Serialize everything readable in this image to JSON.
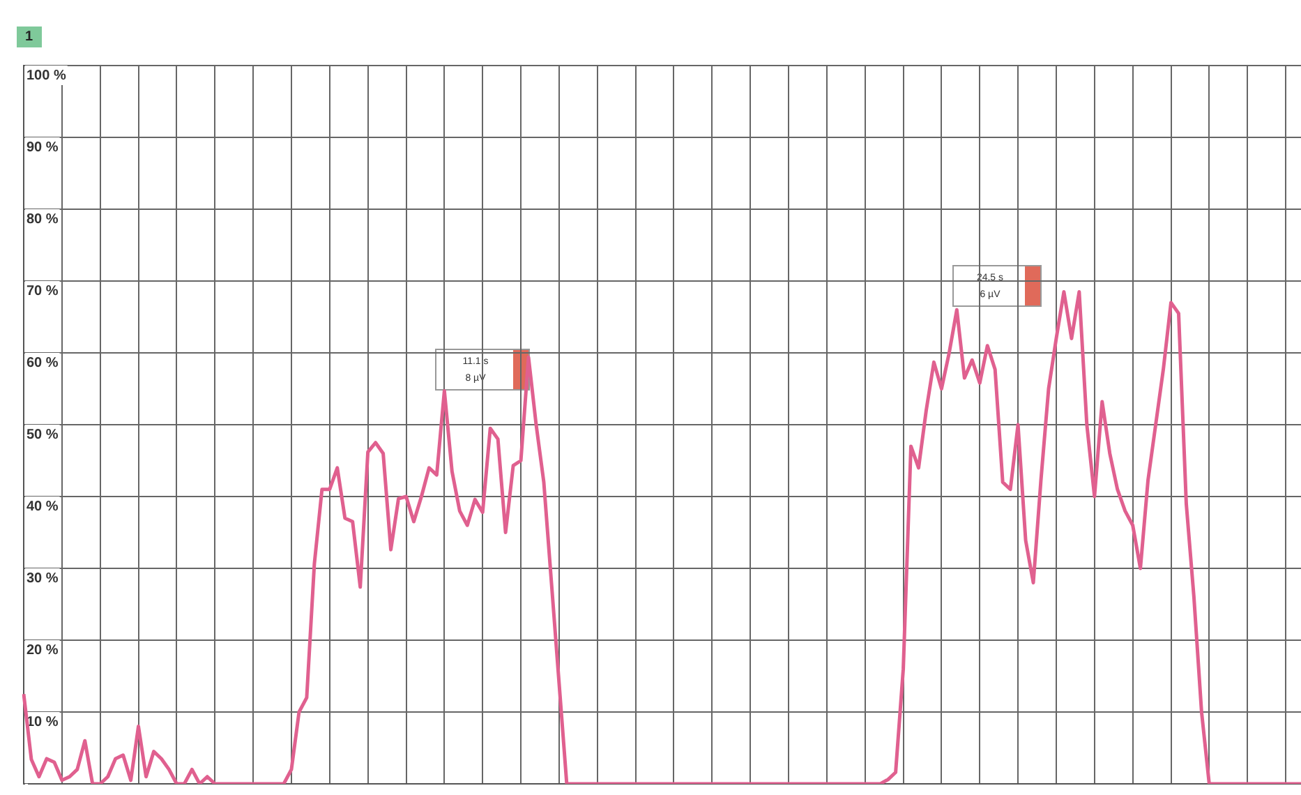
{
  "chart_data": {
    "type": "line",
    "categories": [
      null,
      null,
      null,
      null,
      null,
      null,
      null,
      null,
      null,
      null,
      null,
      null,
      null,
      null,
      null,
      null,
      null,
      null,
      null,
      null,
      null,
      null,
      null,
      null,
      null,
      null,
      null,
      null,
      null,
      null,
      null,
      null,
      null,
      null,
      null,
      null,
      null,
      null,
      null,
      null,
      null,
      null,
      null,
      null,
      null,
      null,
      null,
      null,
      null,
      null,
      null,
      null,
      null,
      null,
      null,
      null,
      null,
      null,
      null,
      null,
      null,
      null,
      null,
      null,
      null,
      null,
      null,
      null,
      null,
      null,
      null,
      null,
      null,
      null,
      null,
      null,
      null,
      null,
      null,
      null,
      null,
      null,
      null,
      null,
      null,
      null,
      null,
      null,
      null,
      null,
      null,
      null,
      null,
      null,
      null,
      null,
      null,
      null,
      null,
      null,
      null,
      null,
      null,
      null,
      null,
      null,
      null,
      null,
      null,
      null,
      null,
      null,
      null,
      null,
      null,
      null,
      null,
      null,
      null,
      null,
      null,
      null,
      null,
      null,
      null,
      null,
      null,
      null,
      null,
      null,
      null,
      null,
      null,
      null,
      null,
      null,
      null,
      null,
      null,
      null,
      null,
      null,
      null,
      null,
      null,
      null,
      null,
      null,
      null,
      null,
      null,
      null,
      null,
      null,
      null,
      null,
      null,
      null,
      null,
      null,
      null,
      null,
      null,
      null,
      null,
      null,
      null,
      null
    ],
    "series": [
      {
        "color": "#e0608f",
        "values": [
          12.5,
          3.4,
          1,
          3.5,
          3,
          0.5,
          1,
          2,
          6,
          0,
          0,
          1,
          3.5,
          4,
          0.5,
          8,
          1,
          4.5,
          3.5,
          2,
          0,
          0,
          2,
          0,
          1,
          0,
          0,
          0,
          0,
          0,
          0,
          0,
          0,
          0,
          0,
          2,
          10,
          12,
          30.6,
          41,
          41,
          44,
          37,
          36.5,
          27.4,
          46.2,
          47.5,
          46,
          32.6,
          39.7,
          40,
          36.5,
          40,
          44,
          43,
          54.7,
          43.5,
          38,
          36,
          39.6,
          37.8,
          49.5,
          48,
          35,
          44.3,
          45,
          59.4,
          50,
          42,
          28,
          14,
          0,
          0,
          0,
          0,
          0,
          0,
          0,
          0,
          0,
          0,
          0,
          0,
          0,
          0,
          0,
          0,
          0,
          0,
          0,
          0,
          0,
          0,
          0,
          0,
          0,
          0,
          0,
          0,
          0,
          0,
          0,
          0,
          0,
          0,
          0,
          0,
          0,
          0,
          0,
          0,
          0,
          0,
          0.6,
          1.6,
          16,
          47,
          44,
          52,
          58.7,
          55,
          60,
          66,
          56.5,
          59,
          55.8,
          61,
          57.7,
          42,
          41,
          50,
          33.9,
          28,
          42.3,
          55,
          62,
          68.5,
          62,
          68.5,
          50,
          40,
          53.2,
          46,
          41,
          38,
          36,
          30,
          42.3,
          50,
          57.7,
          67,
          65.5,
          39,
          26,
          10,
          0,
          0,
          0,
          0,
          0,
          0,
          0,
          0,
          0,
          0,
          0,
          0,
          0
        ]
      }
    ],
    "ylim": [
      0,
      100
    ],
    "yticks": [
      {
        "value": 0,
        "label": null
      },
      {
        "value": 10,
        "label": "10 %"
      },
      {
        "value": 20,
        "label": "20 %"
      },
      {
        "value": 30,
        "label": "30 %"
      },
      {
        "value": 40,
        "label": "40 %"
      },
      {
        "value": 50,
        "label": "50 %"
      },
      {
        "value": 60,
        "label": "60 %"
      },
      {
        "value": 70,
        "label": "70 %"
      },
      {
        "value": 80,
        "label": "80 %"
      },
      {
        "value": 90,
        "label": "90 %"
      },
      {
        "value": 100,
        "label": "100 %"
      }
    ],
    "tick_labels": "y",
    "grid": true,
    "marker": "none",
    "line_style": "solid",
    "annotations": [
      "1",
      "11.1 s",
      "8 µV",
      "24.5 s",
      "6 µV"
    ]
  }
}
